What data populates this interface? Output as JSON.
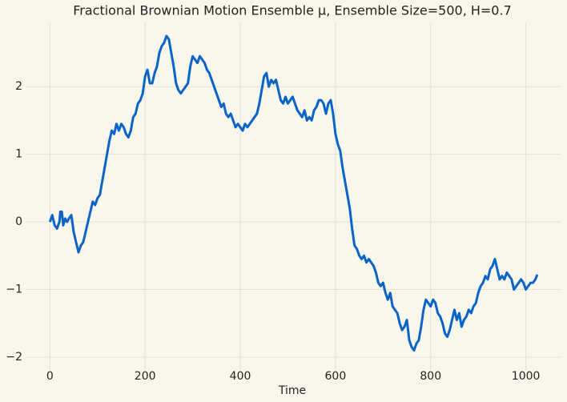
{
  "chart_data": {
    "type": "line",
    "title": "Fractional Brownian Motion Ensemble μ, Ensemble Size=500, H=0.7",
    "x_label": "Time",
    "x": [
      0,
      5,
      10,
      15,
      20,
      22,
      25,
      28,
      32,
      36,
      40,
      45,
      50,
      55,
      60,
      65,
      70,
      75,
      80,
      85,
      90,
      95,
      100,
      105,
      110,
      115,
      120,
      125,
      130,
      135,
      140,
      145,
      150,
      155,
      160,
      165,
      170,
      175,
      180,
      185,
      190,
      195,
      200,
      205,
      210,
      215,
      220,
      225,
      230,
      235,
      240,
      245,
      250,
      255,
      260,
      265,
      270,
      275,
      280,
      285,
      290,
      295,
      300,
      305,
      310,
      315,
      320,
      325,
      330,
      335,
      340,
      345,
      350,
      355,
      360,
      365,
      370,
      375,
      380,
      385,
      390,
      395,
      400,
      405,
      410,
      415,
      420,
      425,
      430,
      435,
      440,
      445,
      450,
      455,
      460,
      465,
      470,
      475,
      480,
      485,
      490,
      495,
      500,
      505,
      510,
      515,
      520,
      525,
      530,
      535,
      540,
      545,
      550,
      555,
      560,
      565,
      570,
      575,
      580,
      585,
      590,
      595,
      600,
      605,
      610,
      615,
      620,
      625,
      630,
      635,
      640,
      645,
      650,
      655,
      660,
      665,
      670,
      675,
      680,
      685,
      690,
      695,
      700,
      705,
      710,
      715,
      720,
      725,
      730,
      735,
      740,
      745,
      750,
      755,
      760,
      765,
      770,
      775,
      780,
      785,
      790,
      795,
      800,
      805,
      810,
      815,
      820,
      825,
      830,
      835,
      840,
      845,
      850,
      855,
      860,
      865,
      870,
      875,
      880,
      885,
      890,
      895,
      900,
      905,
      910,
      915,
      920,
      925,
      930,
      935,
      940,
      945,
      950,
      955,
      960,
      965,
      970,
      975,
      980,
      985,
      990,
      995,
      1000,
      1005,
      1010,
      1015,
      1020,
      1024
    ],
    "series": [
      {
        "name": "μ",
        "color": "#0a64c8",
        "values": [
          0,
          0.1,
          -0.05,
          -0.1,
          0.0,
          0.15,
          0.15,
          -0.05,
          0.05,
          0.0,
          0.05,
          0.1,
          -0.15,
          -0.3,
          -0.45,
          -0.35,
          -0.3,
          -0.15,
          0.0,
          0.15,
          0.3,
          0.25,
          0.35,
          0.4,
          0.6,
          0.8,
          1.0,
          1.2,
          1.35,
          1.3,
          1.45,
          1.35,
          1.45,
          1.4,
          1.3,
          1.25,
          1.35,
          1.55,
          1.6,
          1.75,
          1.8,
          1.9,
          2.15,
          2.25,
          2.05,
          2.05,
          2.2,
          2.3,
          2.5,
          2.6,
          2.65,
          2.75,
          2.7,
          2.5,
          2.3,
          2.05,
          1.95,
          1.9,
          1.95,
          2.0,
          2.05,
          2.3,
          2.45,
          2.4,
          2.35,
          2.45,
          2.4,
          2.35,
          2.25,
          2.2,
          2.1,
          2.0,
          1.9,
          1.8,
          1.7,
          1.75,
          1.6,
          1.55,
          1.6,
          1.5,
          1.4,
          1.45,
          1.4,
          1.35,
          1.45,
          1.4,
          1.45,
          1.5,
          1.55,
          1.6,
          1.75,
          1.95,
          2.15,
          2.2,
          2.0,
          2.1,
          2.05,
          2.1,
          1.95,
          1.8,
          1.75,
          1.85,
          1.75,
          1.8,
          1.85,
          1.75,
          1.65,
          1.6,
          1.55,
          1.65,
          1.5,
          1.55,
          1.5,
          1.65,
          1.7,
          1.8,
          1.8,
          1.75,
          1.6,
          1.75,
          1.8,
          1.6,
          1.3,
          1.15,
          1.05,
          0.8,
          0.6,
          0.4,
          0.2,
          -0.1,
          -0.35,
          -0.4,
          -0.5,
          -0.55,
          -0.5,
          -0.6,
          -0.55,
          -0.6,
          -0.65,
          -0.75,
          -0.9,
          -0.95,
          -0.9,
          -1.05,
          -1.15,
          -1.05,
          -1.25,
          -1.3,
          -1.35,
          -1.5,
          -1.6,
          -1.55,
          -1.45,
          -1.75,
          -1.85,
          -1.9,
          -1.8,
          -1.75,
          -1.55,
          -1.3,
          -1.15,
          -1.2,
          -1.25,
          -1.15,
          -1.2,
          -1.35,
          -1.4,
          -1.5,
          -1.65,
          -1.7,
          -1.6,
          -1.45,
          -1.3,
          -1.45,
          -1.35,
          -1.55,
          -1.45,
          -1.4,
          -1.3,
          -1.35,
          -1.25,
          -1.2,
          -1.05,
          -0.95,
          -0.9,
          -0.8,
          -0.85,
          -0.7,
          -0.65,
          -0.55,
          -0.7,
          -0.85,
          -0.8,
          -0.85,
          -0.75,
          -0.8,
          -0.85,
          -1.0,
          -0.95,
          -0.9,
          -0.85,
          -0.9,
          -1.0,
          -0.95,
          -0.9,
          -0.9,
          -0.85,
          -0.78
        ]
      }
    ],
    "xlim": [
      -51,
      1073
    ],
    "ylim": [
      -2.19,
      2.95
    ],
    "xticks": [
      0,
      200,
      400,
      600,
      800,
      1000
    ],
    "yticks": [
      {
        "value": -2,
        "label": "−2"
      },
      {
        "value": -1,
        "label": "−1"
      },
      0,
      1,
      2
    ],
    "grid": true
  }
}
